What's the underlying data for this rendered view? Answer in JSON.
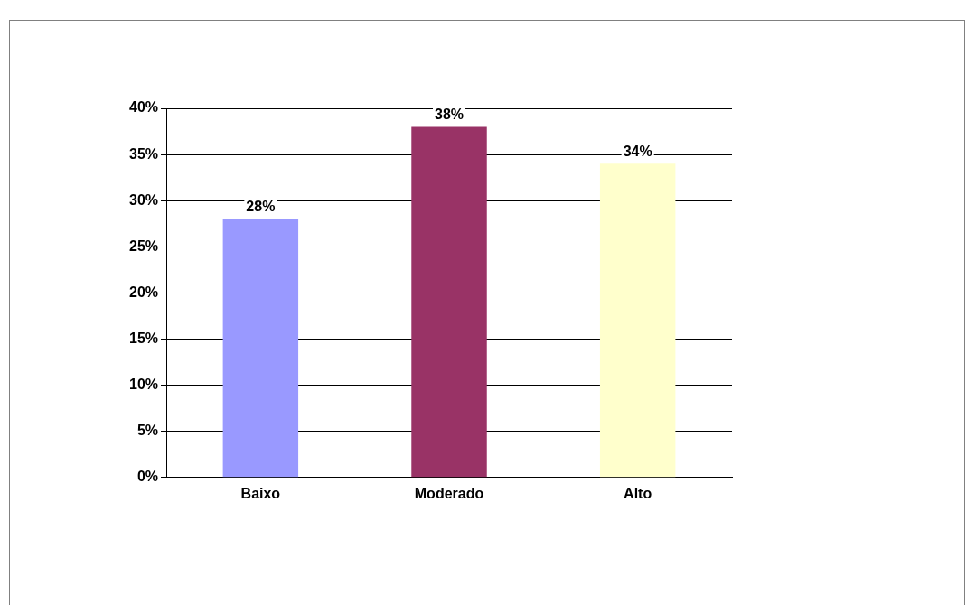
{
  "chart_data": {
    "type": "bar",
    "categories": [
      "Baixo",
      "Moderado",
      "Alto"
    ],
    "values": [
      28,
      38,
      34
    ],
    "colors": [
      "#9999ff",
      "#993366",
      "#ffffcc"
    ],
    "value_labels": [
      "28%",
      "38%",
      "34%"
    ],
    "ylim": [
      0,
      40
    ],
    "yticks": [
      {
        "value": 0,
        "label": "0%"
      },
      {
        "value": 5,
        "label": "5%"
      },
      {
        "value": 10,
        "label": "10%"
      },
      {
        "value": 15,
        "label": "15%"
      },
      {
        "value": 20,
        "label": "20%"
      },
      {
        "value": 25,
        "label": "25%"
      },
      {
        "value": 30,
        "label": "30%"
      },
      {
        "value": 35,
        "label": "35%"
      },
      {
        "value": 40,
        "label": "40%"
      }
    ],
    "grid": "y",
    "legend": false
  }
}
